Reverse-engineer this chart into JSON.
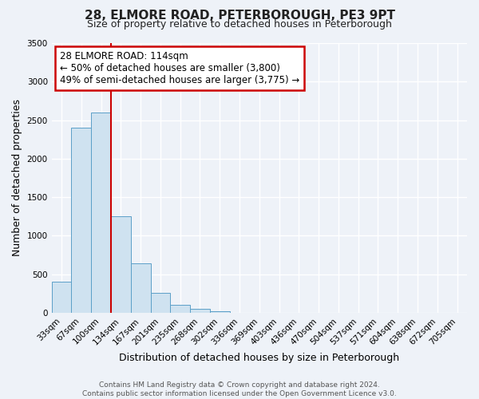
{
  "title": "28, ELMORE ROAD, PETERBOROUGH, PE3 9PT",
  "subtitle": "Size of property relative to detached houses in Peterborough",
  "xlabel": "Distribution of detached houses by size in Peterborough",
  "ylabel": "Number of detached properties",
  "bar_labels": [
    "33sqm",
    "67sqm",
    "100sqm",
    "134sqm",
    "167sqm",
    "201sqm",
    "235sqm",
    "268sqm",
    "302sqm",
    "336sqm",
    "369sqm",
    "403sqm",
    "436sqm",
    "470sqm",
    "504sqm",
    "537sqm",
    "571sqm",
    "604sqm",
    "638sqm",
    "672sqm",
    "705sqm"
  ],
  "bar_values": [
    400,
    2400,
    2600,
    1250,
    640,
    260,
    100,
    50,
    20,
    0,
    0,
    0,
    0,
    0,
    0,
    0,
    0,
    0,
    0,
    0,
    0
  ],
  "bar_color": "#cfe2f0",
  "bar_edge_color": "#5b9fc8",
  "ylim": [
    0,
    3500
  ],
  "yticks": [
    0,
    500,
    1000,
    1500,
    2000,
    2500,
    3000,
    3500
  ],
  "vline_color": "#cc0000",
  "annotation_title": "28 ELMORE ROAD: 114sqm",
  "annotation_line1": "← 50% of detached houses are smaller (3,800)",
  "annotation_line2": "49% of semi-detached houses are larger (3,775) →",
  "annotation_box_edge": "#cc0000",
  "footer_line1": "Contains HM Land Registry data © Crown copyright and database right 2024.",
  "footer_line2": "Contains public sector information licensed under the Open Government Licence v3.0.",
  "background_color": "#eef2f8",
  "plot_bg_color": "#eef2f8",
  "grid_color": "#ffffff",
  "title_fontsize": 11,
  "subtitle_fontsize": 9,
  "axis_label_fontsize": 9,
  "tick_fontsize": 7.5,
  "footer_fontsize": 6.5,
  "annotation_fontsize": 8.5
}
